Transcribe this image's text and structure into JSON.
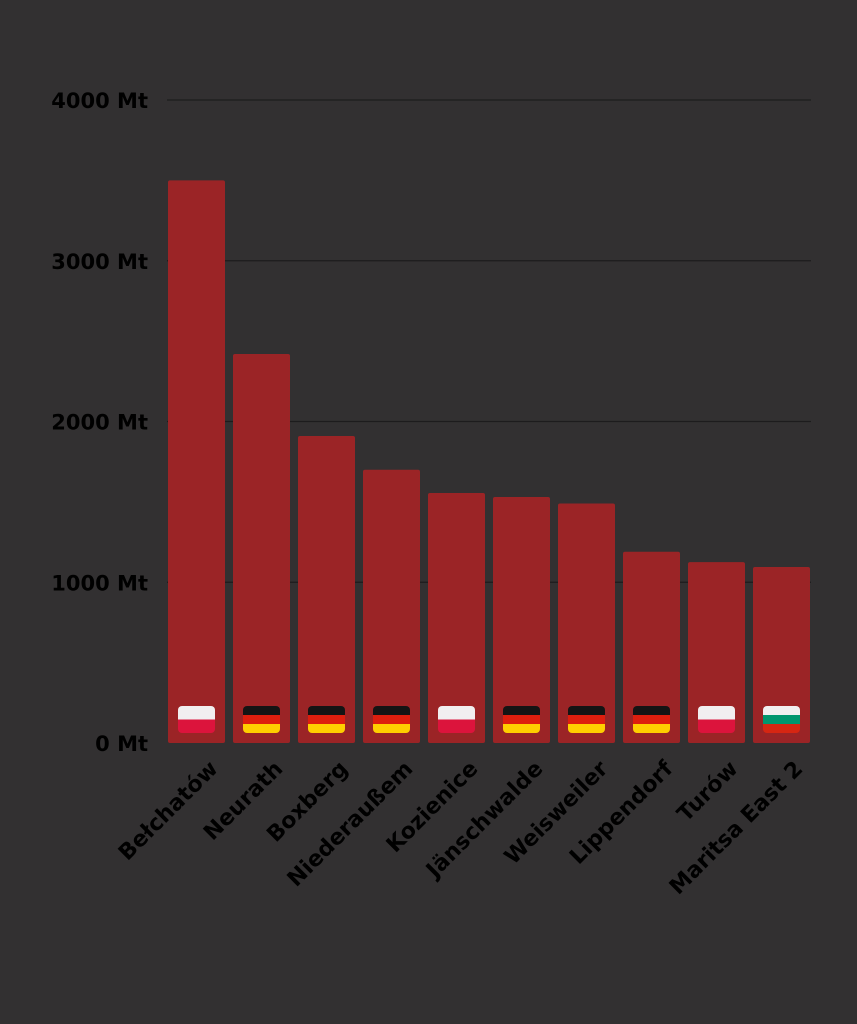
{
  "colors": {
    "background": "#323031",
    "bar": "#9b2426",
    "gridline": "#1d1c1d",
    "text": "#000000"
  },
  "flags": {
    "Poland": [
      "#f1eff0",
      "#dc143c"
    ],
    "Germany": [
      "#141414",
      "#dd1e0e",
      "#ffce00"
    ],
    "Bulgaria": [
      "#f1eff0",
      "#00966e",
      "#d62612"
    ]
  },
  "chart_data": {
    "type": "bar",
    "title": "",
    "xlabel": "",
    "ylabel": "",
    "unit": "Mt",
    "ylim": [
      0,
      4000
    ],
    "yticks": [
      0,
      1000,
      2000,
      3000,
      4000
    ],
    "ytick_labels": [
      "0 Mt",
      "1000 Mt",
      "2000 Mt",
      "3000 Mt",
      "4000 Mt"
    ],
    "categories": [
      "Bełchatów",
      "Neurath",
      "Boxberg",
      "Niederaußem",
      "Kozienice",
      "Jänschwalde",
      "Weisweiler",
      "Lippendorf",
      "Turów",
      "Maritsa East 2"
    ],
    "countries": [
      "Poland",
      "Germany",
      "Germany",
      "Germany",
      "Poland",
      "Germany",
      "Germany",
      "Germany",
      "Poland",
      "Bulgaria"
    ],
    "values": [
      3500,
      2420,
      1910,
      1700,
      1555,
      1530,
      1490,
      1190,
      1125,
      1095
    ]
  }
}
